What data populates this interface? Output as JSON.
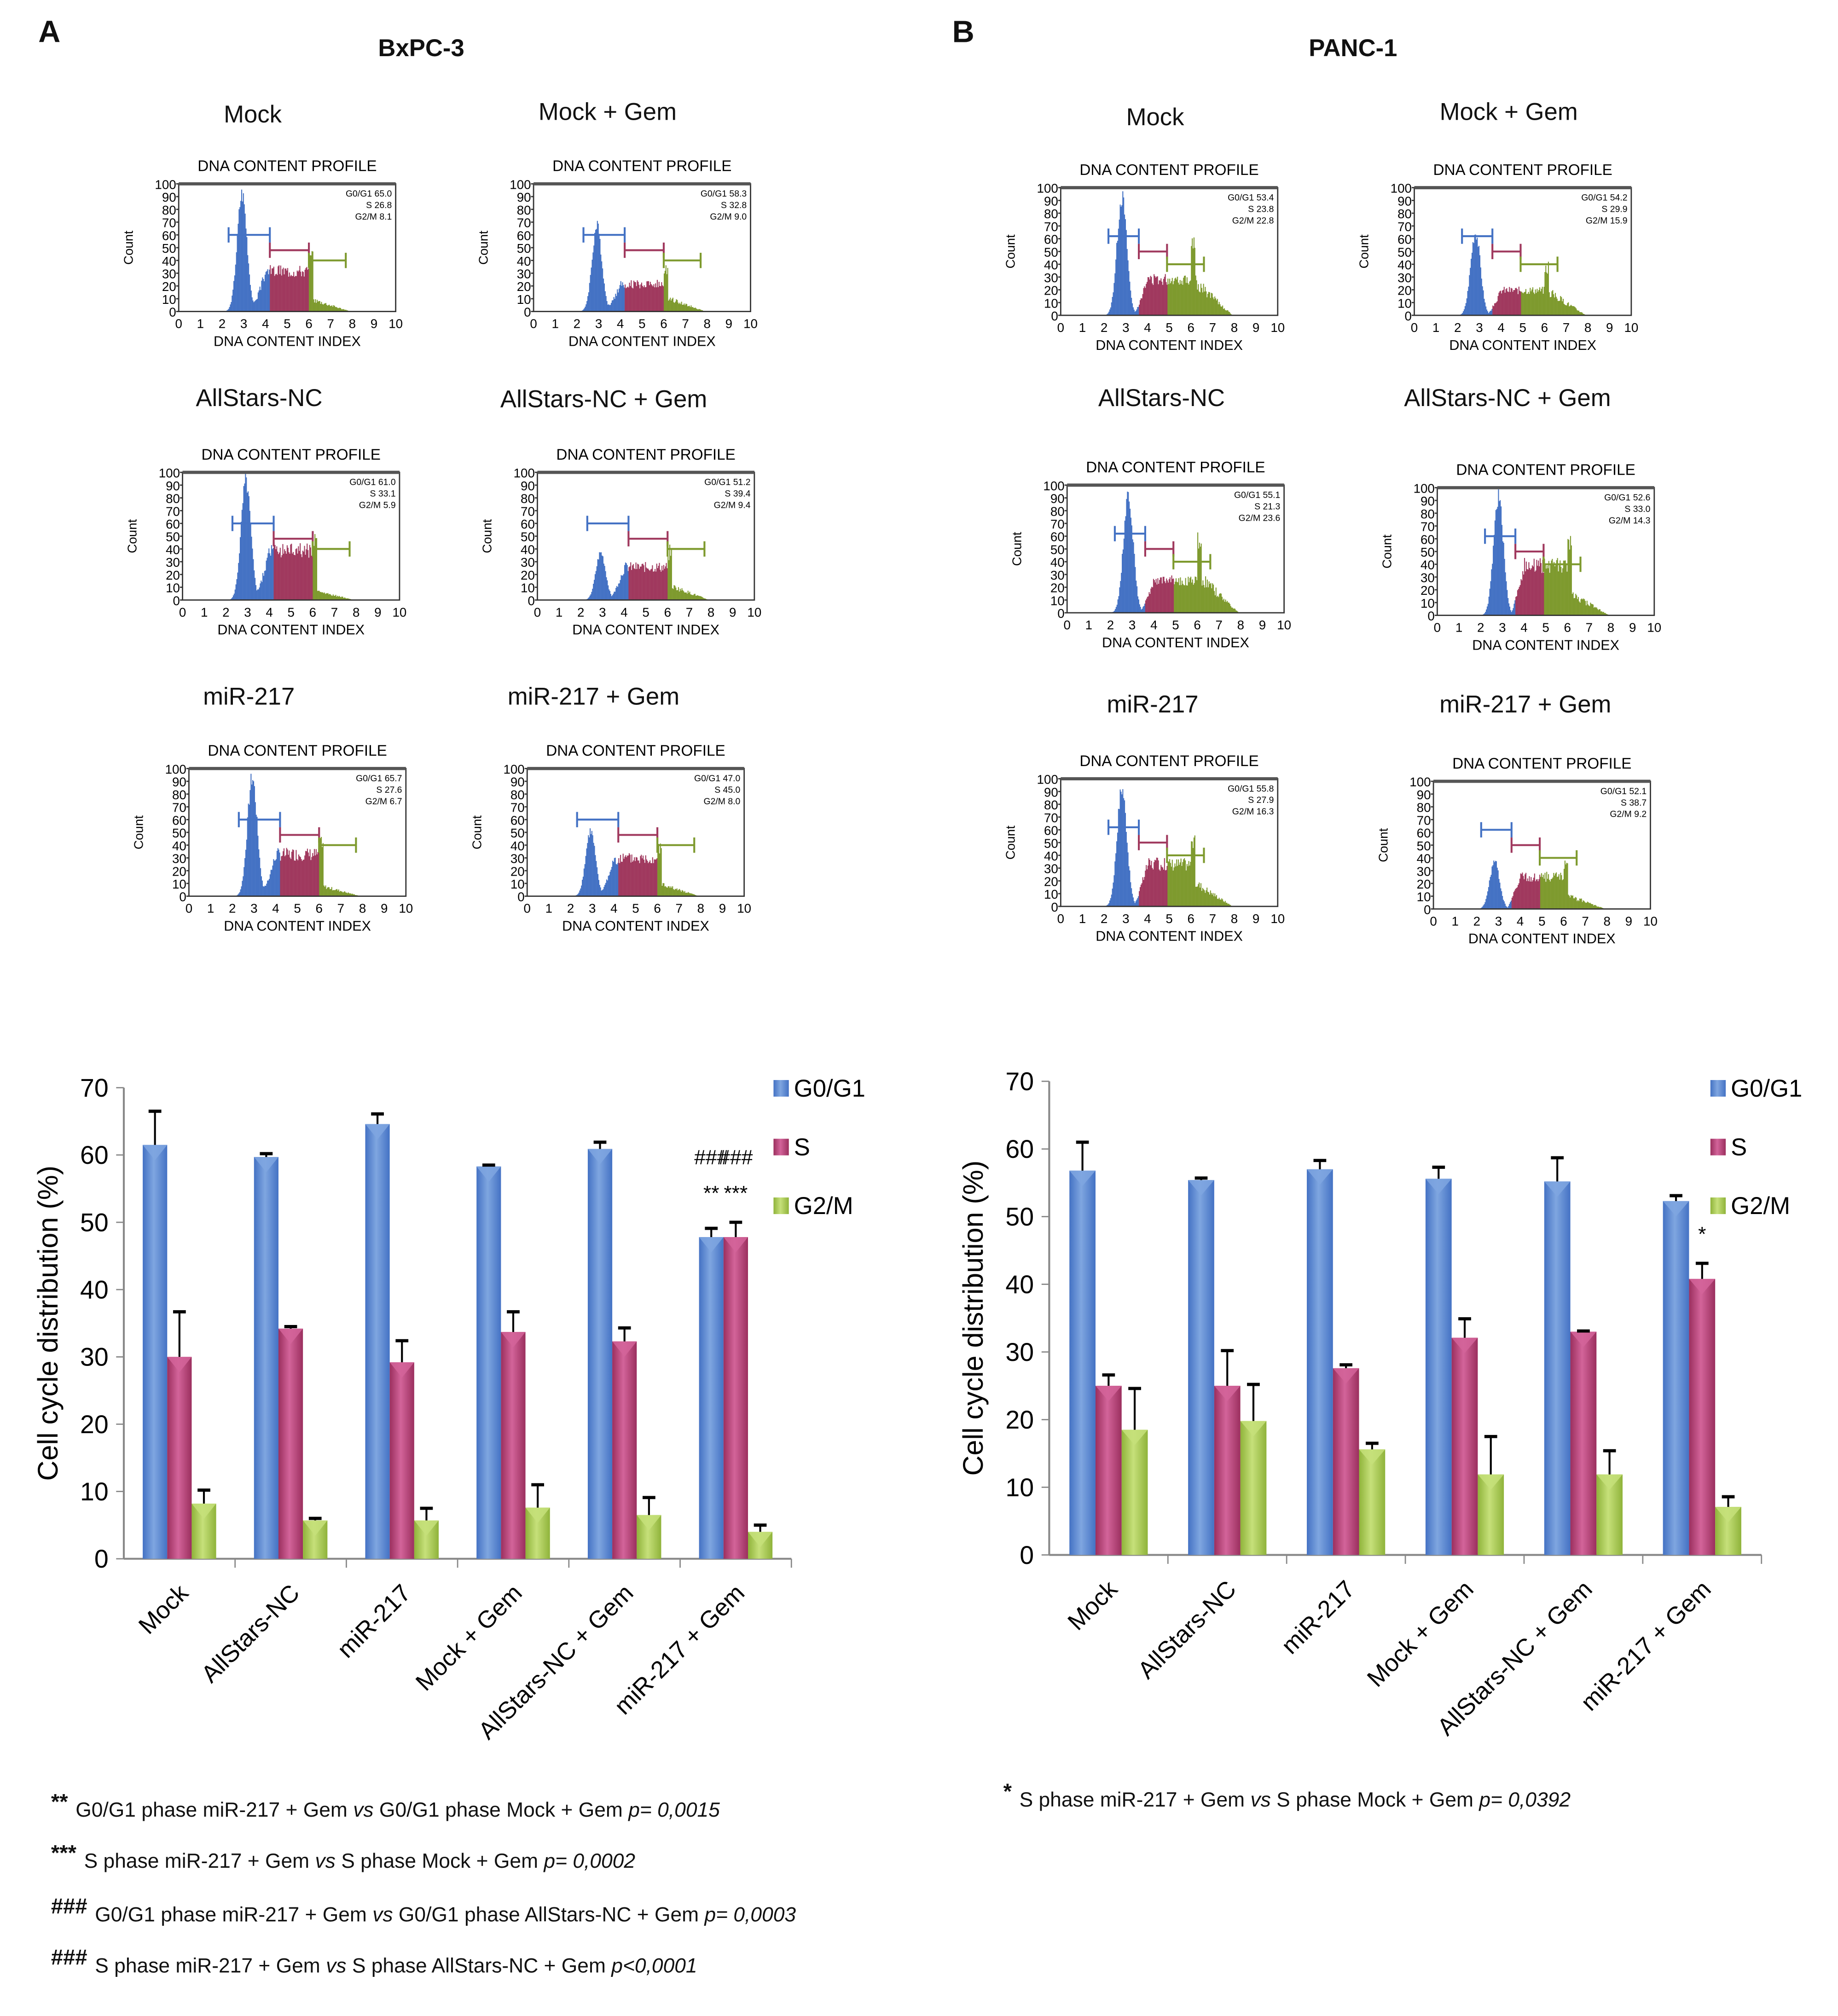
{
  "panels": [
    {
      "letter": "A",
      "cell_line": "BxPC-3",
      "histograms": [
        {
          "condition": "Mock",
          "title": "DNA CONTENT PROFILE",
          "g0g1": "65.0",
          "s": "26.8",
          "g2m": "8.1",
          "peak_count": 100
        },
        {
          "condition": "Mock + Gem",
          "title": "DNA CONTENT PROFILE",
          "g0g1": "58.3",
          "s": "32.8",
          "g2m": "9.0",
          "peak_count": 72
        },
        {
          "condition": "AllStars-NC",
          "title": "DNA CONTENT PROFILE",
          "g0g1": "61.0",
          "s": "33.1",
          "g2m": "5.9",
          "peak_count": 100
        },
        {
          "condition": "AllStars-NC + Gem",
          "title": "DNA CONTENT PROFILE",
          "g0g1": "51.2",
          "s": "39.4",
          "g2m": "9.4",
          "peak_count": 40
        },
        {
          "condition": "miR-217",
          "title": "DNA CONTENT PROFILE",
          "g0g1": "65.7",
          "s": "27.6",
          "g2m": "6.7",
          "peak_count": 100
        },
        {
          "condition": "miR-217 + Gem",
          "title": "DNA CONTENT PROFILE",
          "g0g1": "47.0",
          "s": "45.0",
          "g2m": "8.0",
          "peak_count": 55
        }
      ]
    },
    {
      "letter": "B",
      "cell_line": "PANC-1",
      "histograms": [
        {
          "condition": "Mock",
          "title": "DNA CONTENT PROFILE",
          "g0g1": "53.4",
          "s": "23.8",
          "g2m": "22.8",
          "peak_count": 100
        },
        {
          "condition": "Mock + Gem",
          "title": "DNA CONTENT PROFILE",
          "g0g1": "54.2",
          "s": "29.9",
          "g2m": "15.9",
          "peak_count": 70
        },
        {
          "condition": "AllStars-NC",
          "title": "DNA CONTENT PROFILE",
          "g0g1": "55.1",
          "s": "21.3",
          "g2m": "23.6",
          "peak_count": 100
        },
        {
          "condition": "AllStars-NC + Gem",
          "title": "DNA CONTENT PROFILE",
          "g0g1": "52.6",
          "s": "33.0",
          "g2m": "14.3",
          "peak_count": 100
        },
        {
          "condition": "miR-217",
          "title": "DNA CONTENT PROFILE",
          "g0g1": "55.8",
          "s": "27.9",
          "g2m": "16.3",
          "peak_count": 100
        },
        {
          "condition": "miR-217 + Gem",
          "title": "DNA CONTENT PROFILE",
          "g0g1": "52.1",
          "s": "38.7",
          "g2m": "9.2",
          "peak_count": 40
        }
      ]
    }
  ],
  "histogram_common": {
    "ylabel": "Count",
    "xlabel": "DNA CONTENT INDEX",
    "g0g1_label": "G0/G1",
    "s_label": "S",
    "g2m_label": "G2/M",
    "yticks": [
      0,
      10,
      20,
      30,
      40,
      50,
      60,
      70,
      80,
      90,
      100
    ],
    "xticks": [
      0,
      1,
      2,
      3,
      4,
      5,
      6,
      7,
      8,
      9,
      10
    ]
  },
  "colors": {
    "g0g1": "#4472c4",
    "s": "#a0395e",
    "g2m": "#7e9a2e"
  },
  "chart_data": [
    {
      "type": "bar",
      "title": "BxPC-3",
      "categories": [
        "Mock",
        "AllStars-NC",
        "miR-217",
        "Mock + Gem",
        "AllStars-NC + Gem",
        "miR-217 + Gem"
      ],
      "series": [
        {
          "name": "G0/G1",
          "values": [
            61.5,
            59.7,
            64.6,
            58.3,
            60.9,
            47.8
          ],
          "errors": [
            5.0,
            0.5,
            1.5,
            0.2,
            1.0,
            1.3
          ]
        },
        {
          "name": "S",
          "values": [
            30.0,
            34.2,
            29.2,
            33.7,
            32.3,
            47.8
          ],
          "errors": [
            6.7,
            0.3,
            3.2,
            3.0,
            2.0,
            2.2
          ]
        },
        {
          "name": "G2/M",
          "values": [
            8.2,
            5.7,
            5.7,
            7.6,
            6.5,
            4.0
          ],
          "errors": [
            2.0,
            0.3,
            1.8,
            3.4,
            2.6,
            1.0
          ]
        }
      ],
      "xlabel": "",
      "ylabel": "Cell cycle distribution (%)",
      "ylim": [
        0,
        70
      ],
      "yticks": [
        0,
        10,
        20,
        30,
        40,
        50,
        60,
        70
      ],
      "legend": "top-right",
      "annotations": [
        {
          "category": "miR-217 + Gem",
          "series": "G0/G1",
          "lines": [
            "###",
            "**"
          ]
        },
        {
          "category": "miR-217 + Gem",
          "series": "S",
          "lines": [
            "###",
            "***"
          ]
        }
      ]
    },
    {
      "type": "bar",
      "title": "PANC-1",
      "categories": [
        "Mock",
        "AllStars-NC",
        "miR-217",
        "Mock + Gem",
        "AllStars-NC + Gem",
        "miR-217 + Gem"
      ],
      "series": [
        {
          "name": "G0/G1",
          "values": [
            56.8,
            55.4,
            57.0,
            55.6,
            55.2,
            52.3
          ],
          "errors": [
            4.2,
            0.3,
            1.3,
            1.7,
            3.5,
            0.8
          ]
        },
        {
          "name": "S",
          "values": [
            25.0,
            25.0,
            27.6,
            32.1,
            33.0,
            40.8
          ],
          "errors": [
            1.6,
            5.2,
            0.5,
            2.8,
            0.1,
            2.3
          ]
        },
        {
          "name": "G2/M",
          "values": [
            18.5,
            19.8,
            15.6,
            11.9,
            11.9,
            7.1
          ],
          "errors": [
            6.1,
            5.4,
            0.9,
            5.6,
            3.5,
            1.5
          ]
        }
      ],
      "xlabel": "",
      "ylabel": "Cell cycle distribution (%)",
      "ylim": [
        0,
        70
      ],
      "yticks": [
        0,
        10,
        20,
        30,
        40,
        50,
        60,
        70
      ],
      "legend": "top-right",
      "annotations": [
        {
          "category": "miR-217 + Gem",
          "series": "S",
          "lines": [
            "*"
          ]
        }
      ]
    }
  ],
  "footnotes": {
    "A": [
      {
        "sym": "**",
        "a": "G0/G1 phase miR-217 + Gem",
        "vs": "vs",
        "b": "G0/G1 phase Mock + Gem",
        "p": "p= 0,0015"
      },
      {
        "sym": "***",
        "a": "S phase miR-217 + Gem",
        "vs": "vs",
        "b": "S phase Mock + Gem",
        "p": "p= 0,0002"
      },
      {
        "sym": "###",
        "a": "G0/G1 phase miR-217 + Gem",
        "vs": "vs",
        "b": "G0/G1 phase AllStars-NC + Gem",
        "p": "p= 0,0003"
      },
      {
        "sym": "###",
        "a": "S phase miR-217 + Gem",
        "vs": "vs",
        "b": "S phase AllStars-NC + Gem",
        "p": "p<0,0001"
      }
    ],
    "B": [
      {
        "sym": "*",
        "a": "S phase miR-217 + Gem",
        "vs": "vs",
        "b": "S phase Mock + Gem",
        "p": "p= 0,0392"
      }
    ]
  }
}
